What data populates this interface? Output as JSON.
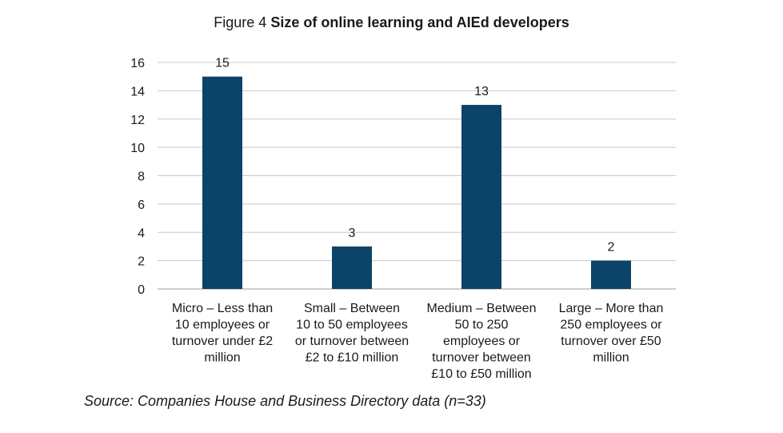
{
  "figure": {
    "prefix": "Figure 4",
    "title": "Size of online learning and AIEd developers",
    "source": "Source: Companies House and Business Directory data (n=33)"
  },
  "colors": {
    "bar": "#0b4468",
    "grid": "#c8c8c8",
    "axis": "#bfbfbf",
    "text": "#1a1a1a"
  },
  "chart_data": {
    "type": "bar",
    "title": "Size of online learning and AIEd developers",
    "categories": [
      [
        "Micro – Less than",
        "10 employees or",
        "turnover under £2",
        "million"
      ],
      [
        "Small – Between",
        "10 to 50 employees",
        "or turnover between",
        "£2 to £10 million"
      ],
      [
        "Medium – Between",
        "50 to 250",
        "employees or",
        "turnover between",
        "£10 to £50 million"
      ],
      [
        "Large – More than",
        "250 employees or",
        "turnover over £50",
        "million"
      ]
    ],
    "values": [
      15,
      3,
      13,
      2
    ],
    "data_labels": [
      "15",
      "3",
      "13",
      "2"
    ],
    "ylim": [
      0,
      16
    ],
    "yticks": [
      0,
      2,
      4,
      6,
      8,
      10,
      12,
      14,
      16
    ],
    "grid": true,
    "legend": "none"
  }
}
